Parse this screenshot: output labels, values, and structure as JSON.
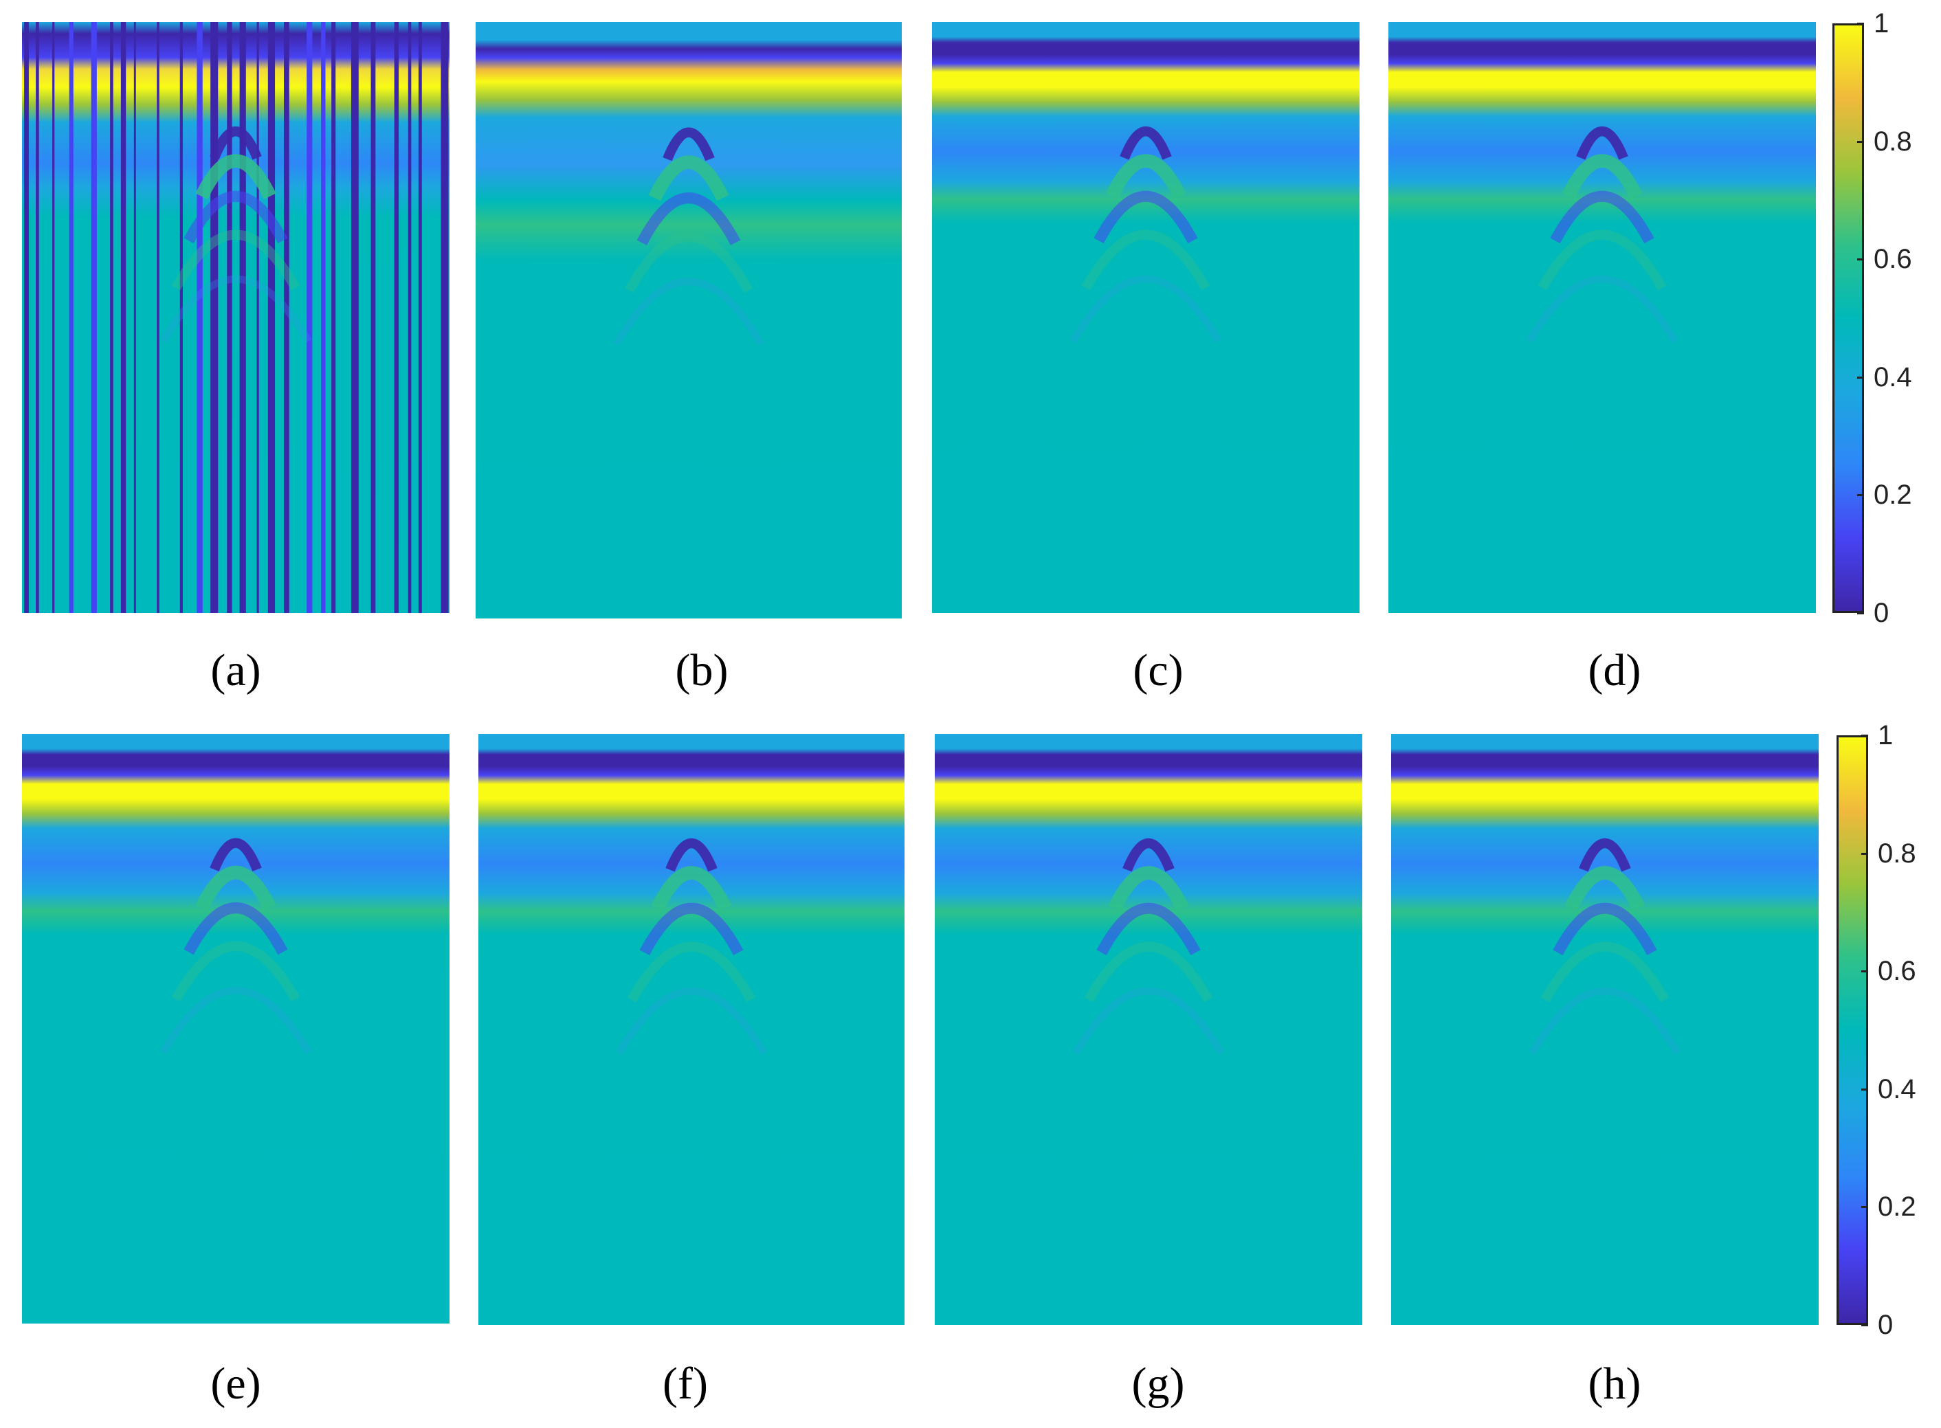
{
  "figure": {
    "panels": [
      {
        "label": "(a)",
        "type": "raw",
        "desc": "noisy-striped"
      },
      {
        "label": "(b)",
        "type": "denoised"
      },
      {
        "label": "(c)",
        "type": "denoised"
      },
      {
        "label": "(d)",
        "type": "denoised"
      },
      {
        "label": "(e)",
        "type": "denoised"
      },
      {
        "label": "(f)",
        "type": "denoised"
      },
      {
        "label": "(g)",
        "type": "denoised"
      },
      {
        "label": "(h)",
        "type": "denoised"
      }
    ],
    "colormap": [
      "#3e26a8",
      "#4743f4",
      "#2e87f7",
      "#1ca8de",
      "#00b9b9",
      "#2fc18a",
      "#9bc53c",
      "#f0b93c",
      "#f9fb15"
    ]
  },
  "chart_data": {
    "type": "heatmap",
    "panel_labels": [
      "(a)",
      "(b)",
      "(c)",
      "(d)",
      "(e)",
      "(f)",
      "(g)",
      "(h)"
    ],
    "colorbar": {
      "min": 0,
      "max": 1,
      "ticks": [
        "0",
        "0.2",
        "0.4",
        "0.6",
        "0.8",
        "1"
      ],
      "tick_values": [
        0,
        0.2,
        0.4,
        0.6,
        0.8,
        1
      ]
    },
    "colorbars": 2,
    "background_value": 0.5
  }
}
